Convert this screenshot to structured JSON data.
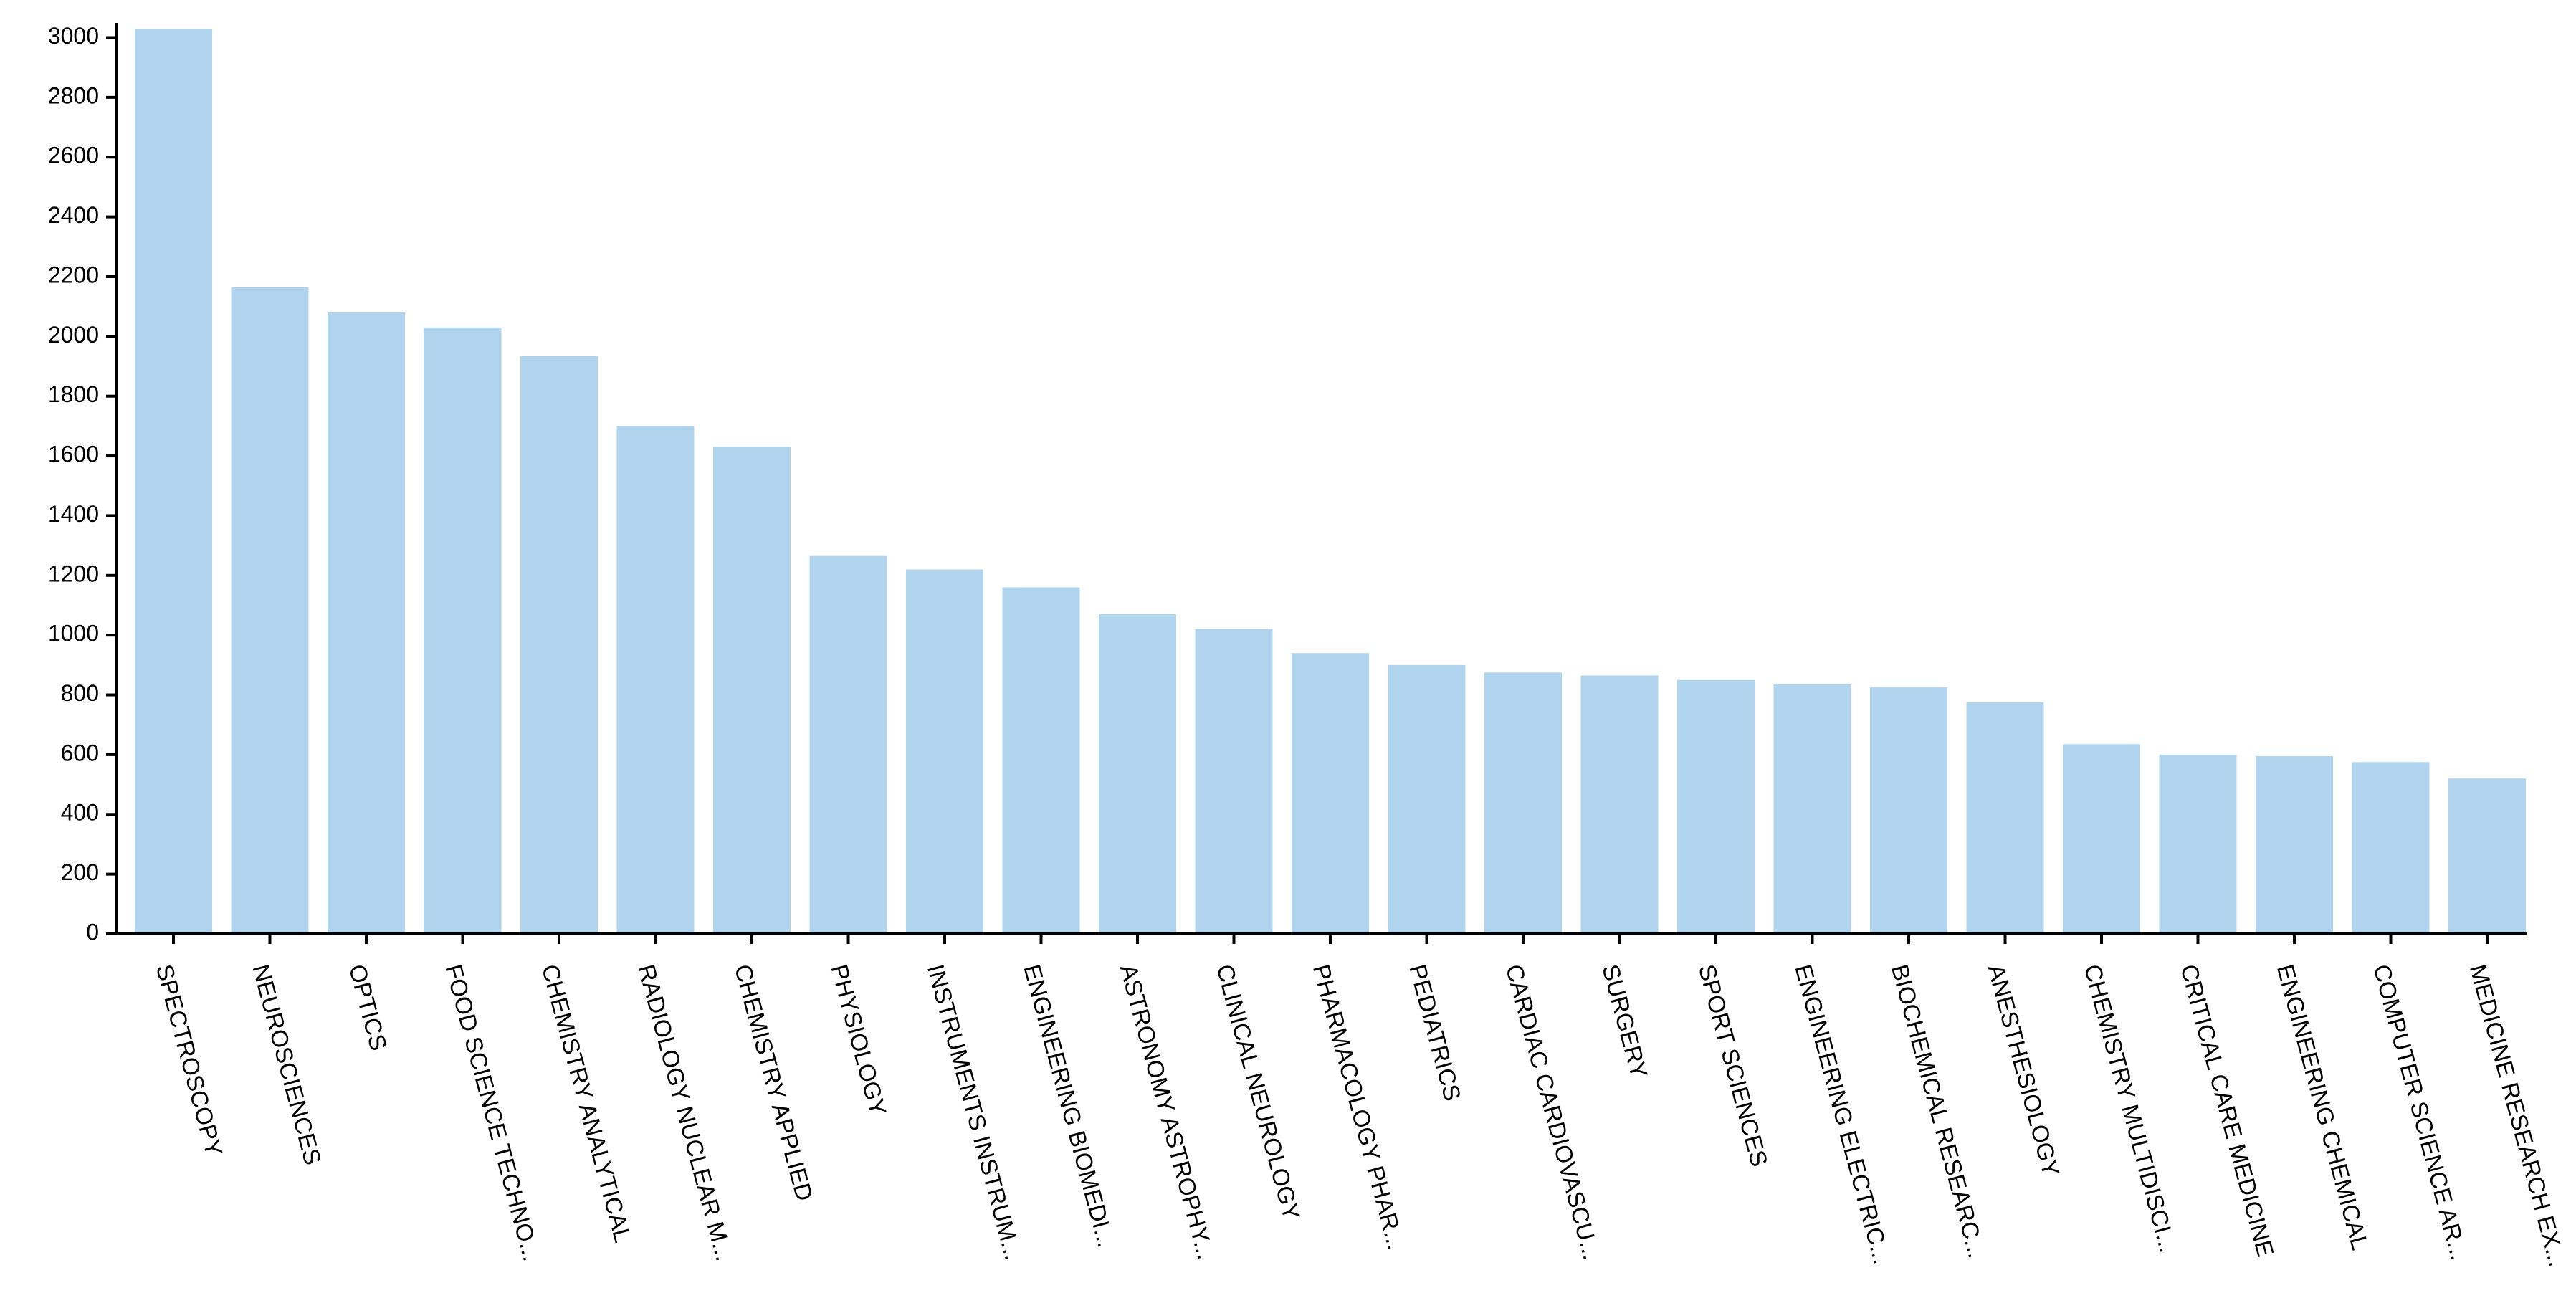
{
  "chart_data": {
    "type": "bar",
    "categories": [
      "SPECTROSCOPY",
      "NEUROSCIENCES",
      "OPTICS",
      "FOOD SCIENCE TECHNO...",
      "CHEMISTRY ANALYTICAL",
      "RADIOLOGY NUCLEAR M...",
      "CHEMISTRY APPLIED",
      "PHYSIOLOGY",
      "INSTRUMENTS INSTRUM...",
      "ENGINEERING BIOMEDI...",
      "ASTRONOMY ASTROPHY...",
      "CLINICAL NEUROLOGY",
      "PHARMACOLOGY PHAR...",
      "PEDIATRICS",
      "CARDIAC CARDIOVASCU...",
      "SURGERY",
      "SPORT SCIENCES",
      "ENGINEERING ELECTRIC...",
      "BIOCHEMICAL RESEARC...",
      "ANESTHESIOLOGY",
      "CHEMISTRY MULTIDISCI...",
      "CRITICAL CARE MEDICINE",
      "ENGINEERING CHEMICAL",
      "COMPUTER SCIENCE AR...",
      "MEDICINE RESEARCH EX..."
    ],
    "values": [
      3030,
      2165,
      2080,
      2030,
      1935,
      1700,
      1630,
      1265,
      1220,
      1160,
      1070,
      1020,
      940,
      900,
      875,
      865,
      850,
      835,
      825,
      775,
      635,
      600,
      595,
      575,
      520
    ],
    "ylim": [
      0,
      3030
    ],
    "yticks": [
      0,
      200,
      400,
      600,
      800,
      1000,
      1200,
      1400,
      1600,
      1800,
      2000,
      2200,
      2400,
      2600,
      2800,
      3000
    ],
    "bar_color": "#b0d4ee",
    "axis_color": "#000000",
    "title": "",
    "xlabel": "",
    "ylabel": "",
    "grid": false,
    "legend": "none"
  }
}
